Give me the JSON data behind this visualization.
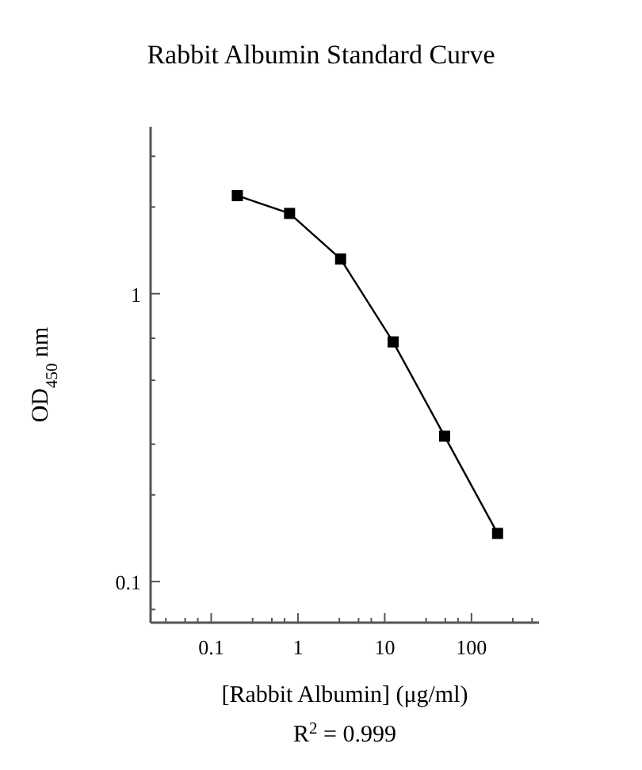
{
  "chart_data": {
    "type": "line",
    "title": "Rabbit Albumin Standard Curve",
    "xlabel": "[Rabbit Albumin] (μg/ml)",
    "ylabel": "OD$_{450}$ nm",
    "annotations": [
      "R$^{2}$ = 0.999"
    ],
    "x": [
      0.2,
      0.8,
      3.1,
      12.5,
      49,
      200
    ],
    "series": [
      {
        "color": "#000000",
        "values": [
          2.19,
          1.9,
          1.32,
          0.68,
          0.32,
          0.147
        ]
      }
    ],
    "log": "xy",
    "xlim": [
      0.02,
      600
    ],
    "ylim": [
      0.072,
      3.8
    ],
    "xticks": [
      {
        "value": 0.03,
        "label": null
      },
      {
        "value": 0.05,
        "label": null
      },
      {
        "value": 0.07,
        "label": null
      },
      0.1,
      {
        "value": 0.3,
        "label": null
      },
      {
        "value": 0.5,
        "label": null
      },
      {
        "value": 0.7,
        "label": null
      },
      1,
      {
        "value": 3,
        "label": null
      },
      {
        "value": 5,
        "label": null
      },
      {
        "value": 7,
        "label": null
      },
      10,
      {
        "value": 30,
        "label": null
      },
      {
        "value": 50,
        "label": null
      },
      {
        "value": 70,
        "label": null
      },
      100,
      {
        "value": 300,
        "label": null
      },
      {
        "value": 500,
        "label": null
      }
    ],
    "yticks": [
      {
        "value": 0.08,
        "label": null
      },
      0.1,
      {
        "value": 0.2,
        "label": null
      },
      {
        "value": 0.3,
        "label": null
      },
      {
        "value": 0.5,
        "label": null
      },
      {
        "value": 0.7,
        "label": null
      },
      1,
      {
        "value": 2,
        "label": null
      },
      {
        "value": 3,
        "label": null
      }
    ],
    "grid": false,
    "marker": "square",
    "line_style": "solid"
  }
}
